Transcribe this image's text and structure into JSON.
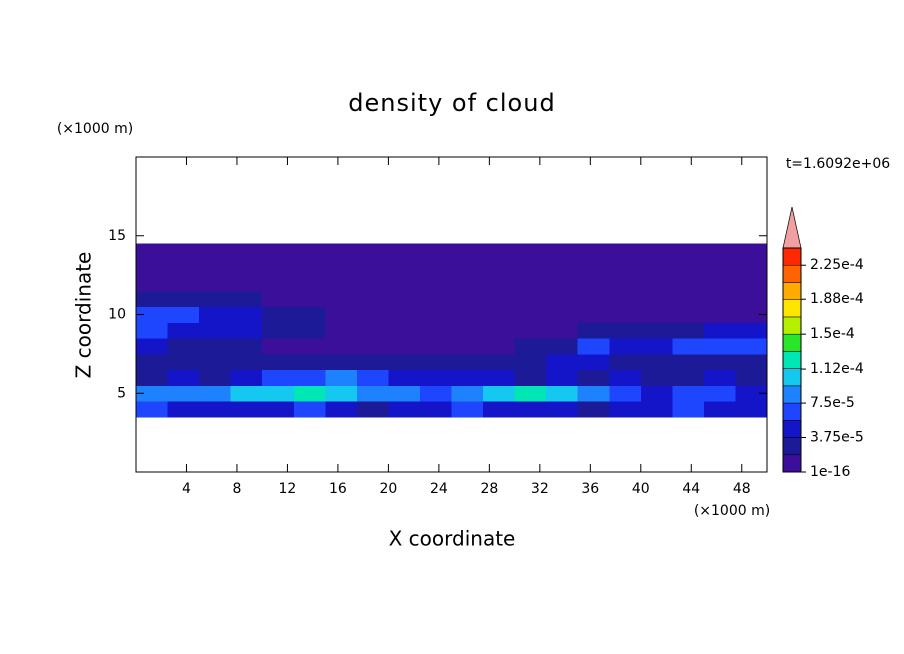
{
  "chart_data": {
    "type": "contour",
    "title": "density of cloud",
    "x_label": "X coordinate",
    "y_label": "Z coordinate",
    "x_unit": "(×1000 m)",
    "y_unit": "(×1000 m)",
    "time_label": "t=1.6092e+06",
    "xlim": [
      0,
      50
    ],
    "ylim": [
      0,
      20
    ],
    "xticks": [
      4,
      8,
      12,
      16,
      20,
      24,
      28,
      32,
      36,
      40,
      44,
      48
    ],
    "yticks": [
      5,
      10,
      15
    ],
    "x": [
      1.25,
      3.75,
      6.25,
      8.75,
      11.25,
      13.75,
      16.25,
      18.75,
      21.25,
      23.75,
      26.25,
      28.75,
      31.25,
      33.75,
      36.25,
      38.75,
      41.25,
      43.75,
      46.25,
      48.75
    ],
    "z": [
      4,
      5,
      6,
      7,
      8,
      9,
      10,
      11,
      12,
      13,
      14
    ],
    "values": [
      [
        6e-05,
        5e-05,
        4e-05,
        5e-05,
        4e-05,
        6e-05,
        5e-05,
        3e-05,
        4e-05,
        5e-05,
        6e-05,
        5e-05,
        5e-05,
        4e-05,
        3e-05,
        4e-05,
        5e-05,
        6e-05,
        4e-05,
        5e-05
      ],
      [
        9e-05,
        8e-05,
        9e-05,
        0.0001,
        0.00011,
        0.000115,
        0.0001,
        9e-05,
        8e-05,
        7e-05,
        9e-05,
        0.00011,
        0.00013,
        0.0001,
        8e-05,
        6e-05,
        5e-05,
        7e-05,
        6e-05,
        5e-05
      ],
      [
        3e-05,
        4e-05,
        3e-05,
        4e-05,
        6e-05,
        7e-05,
        8e-05,
        6e-05,
        5e-05,
        4e-05,
        5e-05,
        4e-05,
        3e-05,
        4e-05,
        3e-05,
        4e-05,
        3e-05,
        3e-05,
        4e-05,
        3e-05
      ],
      [
        2e-05,
        2e-05,
        2e-05,
        2e-05,
        2e-05,
        2e-05,
        3e-05,
        2e-05,
        2e-05,
        3e-05,
        2e-05,
        2e-05,
        2e-05,
        5e-05,
        4e-05,
        3e-05,
        3e-05,
        2e-05,
        2e-05,
        2e-05
      ],
      [
        4e-05,
        3e-05,
        2e-05,
        2e-05,
        1e-05,
        1e-05,
        1e-05,
        1e-05,
        1e-05,
        1e-05,
        1e-05,
        1e-05,
        2e-05,
        3e-05,
        6e-05,
        5e-05,
        5e-05,
        6e-05,
        7e-05,
        6e-05
      ],
      [
        6e-05,
        5e-05,
        5e-05,
        4e-05,
        3e-05,
        2e-05,
        1e-05,
        1e-05,
        1e-05,
        1e-05,
        5e-06,
        5e-06,
        5e-06,
        5e-06,
        2e-05,
        2e-05,
        3e-05,
        3e-05,
        4e-05,
        5e-05
      ],
      [
        7e-05,
        6e-05,
        5e-05,
        4e-05,
        3e-05,
        2e-05,
        5e-06,
        5e-06,
        5e-06,
        5e-06,
        5e-06,
        5e-06,
        5e-06,
        5e-06,
        5e-06,
        5e-06,
        5e-06,
        5e-06,
        5e-06,
        5e-06
      ],
      [
        3e-05,
        3e-05,
        2e-05,
        2e-05,
        5e-06,
        5e-06,
        5e-06,
        5e-06,
        5e-06,
        5e-06,
        5e-06,
        5e-06,
        5e-06,
        5e-06,
        5e-06,
        5e-06,
        5e-06,
        5e-06,
        5e-06,
        5e-06
      ],
      [
        5e-06,
        5e-06,
        5e-06,
        5e-06,
        5e-06,
        5e-06,
        5e-06,
        5e-06,
        5e-06,
        5e-06,
        5e-06,
        5e-06,
        5e-06,
        5e-06,
        5e-06,
        5e-06,
        5e-06,
        5e-06,
        5e-06,
        5e-06
      ],
      [
        5e-06,
        5e-06,
        5e-06,
        5e-06,
        5e-06,
        5e-06,
        5e-06,
        5e-06,
        5e-06,
        5e-06,
        5e-06,
        5e-06,
        5e-06,
        5e-06,
        5e-06,
        5e-06,
        5e-06,
        5e-06,
        5e-06,
        5e-06
      ],
      [
        5e-06,
        5e-06,
        5e-06,
        5e-06,
        5e-06,
        5e-06,
        5e-06,
        5e-06,
        5e-06,
        5e-06,
        5e-06,
        5e-06,
        5e-06,
        5e-06,
        5e-06,
        5e-06,
        5e-06,
        5e-06,
        5e-06,
        5e-06
      ]
    ],
    "levels": [
      1e-16,
      1.875e-05,
      3.75e-05,
      5.625e-05,
      7.5e-05,
      9.375e-05,
      0.0001125,
      0.00013125,
      0.00015,
      0.00016875,
      0.0001875,
      0.00020625,
      0.000225,
      0.00024375
    ],
    "colors": [
      "#3c0f9b",
      "#1c1a96",
      "#1414c8",
      "#1e46ff",
      "#1e82ff",
      "#14c8f0",
      "#00e6b4",
      "#28e628",
      "#b4f000",
      "#ffe600",
      "#ffaa00",
      "#ff6400",
      "#ff2800"
    ],
    "extend_color": "#f0a0a0",
    "colorbar_ticks": [
      1e-16,
      {
        "value": 3.75e-05,
        "label": "3.75e-5"
      },
      {
        "value": 7.5e-05,
        "label": "7.5e-5"
      },
      {
        "value": 0.000112,
        "label": "1.12e-4"
      },
      {
        "value": 0.00015,
        "label": "1.5e-4"
      },
      {
        "value": 0.000188,
        "label": "1.88e-4"
      },
      {
        "value": 0.000225,
        "label": "2.25e-4"
      }
    ]
  }
}
